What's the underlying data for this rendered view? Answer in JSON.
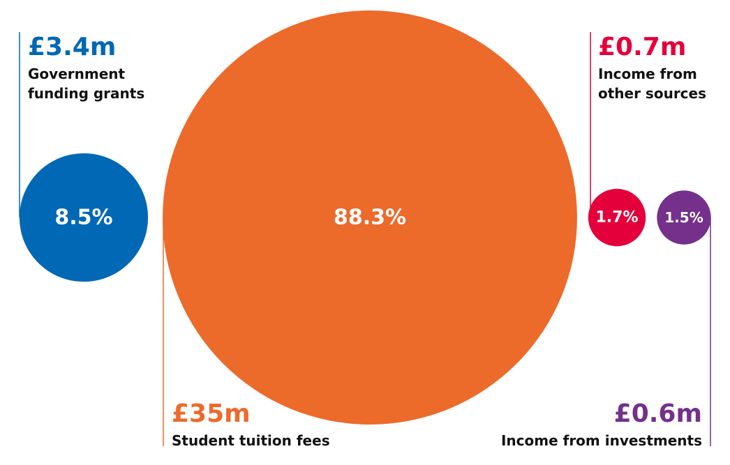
{
  "chart_data": {
    "type": "bubble",
    "categories": [
      "Government funding grants",
      "Student tuition fees",
      "Income from other sources",
      "Income from investments"
    ],
    "values": [
      8.5,
      88.3,
      1.7,
      1.5
    ],
    "value_labels": [
      "8.5%",
      "88.3%",
      "1.7%",
      "1.5%"
    ],
    "amounts": [
      3400000,
      35000000,
      700000,
      600000
    ],
    "amount_labels": [
      "£3.4m",
      "£35m",
      "£0.7m",
      "£0.6m"
    ],
    "colors": [
      "#0068b4",
      "#ec6a2a",
      "#e4003b",
      "#74308a"
    ]
  }
}
